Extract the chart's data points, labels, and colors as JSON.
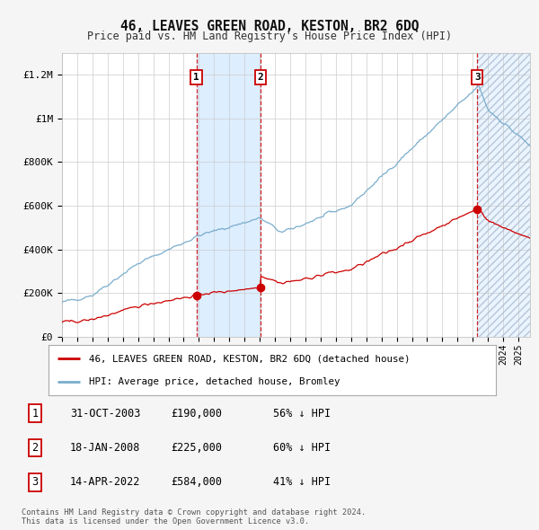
{
  "title": "46, LEAVES GREEN ROAD, KESTON, BR2 6DQ",
  "subtitle": "Price paid vs. HM Land Registry's House Price Index (HPI)",
  "footnote": "Contains HM Land Registry data © Crown copyright and database right 2024.\nThis data is licensed under the Open Government Licence v3.0.",
  "legend_line1": "46, LEAVES GREEN ROAD, KESTON, BR2 6DQ (detached house)",
  "legend_line2": "HPI: Average price, detached house, Bromley",
  "transactions": [
    {
      "num": 1,
      "date": "31-OCT-2003",
      "price": 190000,
      "pct": "56%",
      "dir": "↓",
      "label": "HPI",
      "tyear": 2003.833
    },
    {
      "num": 2,
      "date": "18-JAN-2008",
      "price": 225000,
      "pct": "60%",
      "dir": "↓",
      "label": "HPI",
      "tyear": 2008.042
    },
    {
      "num": 3,
      "date": "14-APR-2022",
      "price": 584000,
      "pct": "41%",
      "dir": "↓",
      "label": "HPI",
      "tyear": 2022.292
    }
  ],
  "red_color": "#cc0000",
  "blue_color": "#7aadcc",
  "background_color": "#f5f5f5",
  "plot_bg_color": "#ffffff",
  "grid_color": "#cccccc",
  "shade_color": "#ddeeff",
  "ylim": [
    0,
    1300000
  ],
  "yticks": [
    0,
    200000,
    400000,
    600000,
    800000,
    1000000,
    1200000
  ],
  "ytick_labels": [
    "£0",
    "£200K",
    "£400K",
    "£600K",
    "£800K",
    "£1M",
    "£1.2M"
  ],
  "xstart": 1995.0,
  "xend": 2025.75
}
